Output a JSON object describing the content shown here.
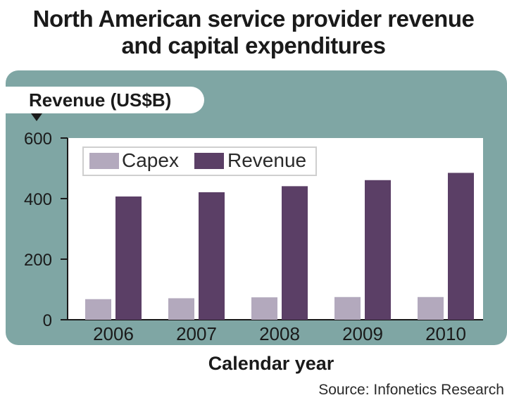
{
  "chart_data": {
    "type": "bar",
    "title": "North American service provider revenue and capital expenditures",
    "title_lines": [
      "North American service provider revenue",
      "and capital expenditures"
    ],
    "ylabel": "Revenue (US$B)",
    "xlabel": "Calendar year",
    "source": "Source:  Infonetics Research",
    "categories": [
      "2006",
      "2007",
      "2008",
      "2009",
      "2010"
    ],
    "ylim": [
      0,
      600
    ],
    "yticks": [
      0,
      200,
      400,
      600
    ],
    "grid": false,
    "legend_position": "top-left",
    "series": [
      {
        "name": "Capex",
        "color": "#b3a9bd",
        "values": [
          68,
          71,
          74,
          75,
          75
        ]
      },
      {
        "name": "Revenue",
        "color": "#5b3f66",
        "values": [
          407,
          421,
          441,
          461,
          485
        ]
      }
    ]
  },
  "colors": {
    "panel": "#7fa6a4",
    "text": "#1a1a1a"
  }
}
